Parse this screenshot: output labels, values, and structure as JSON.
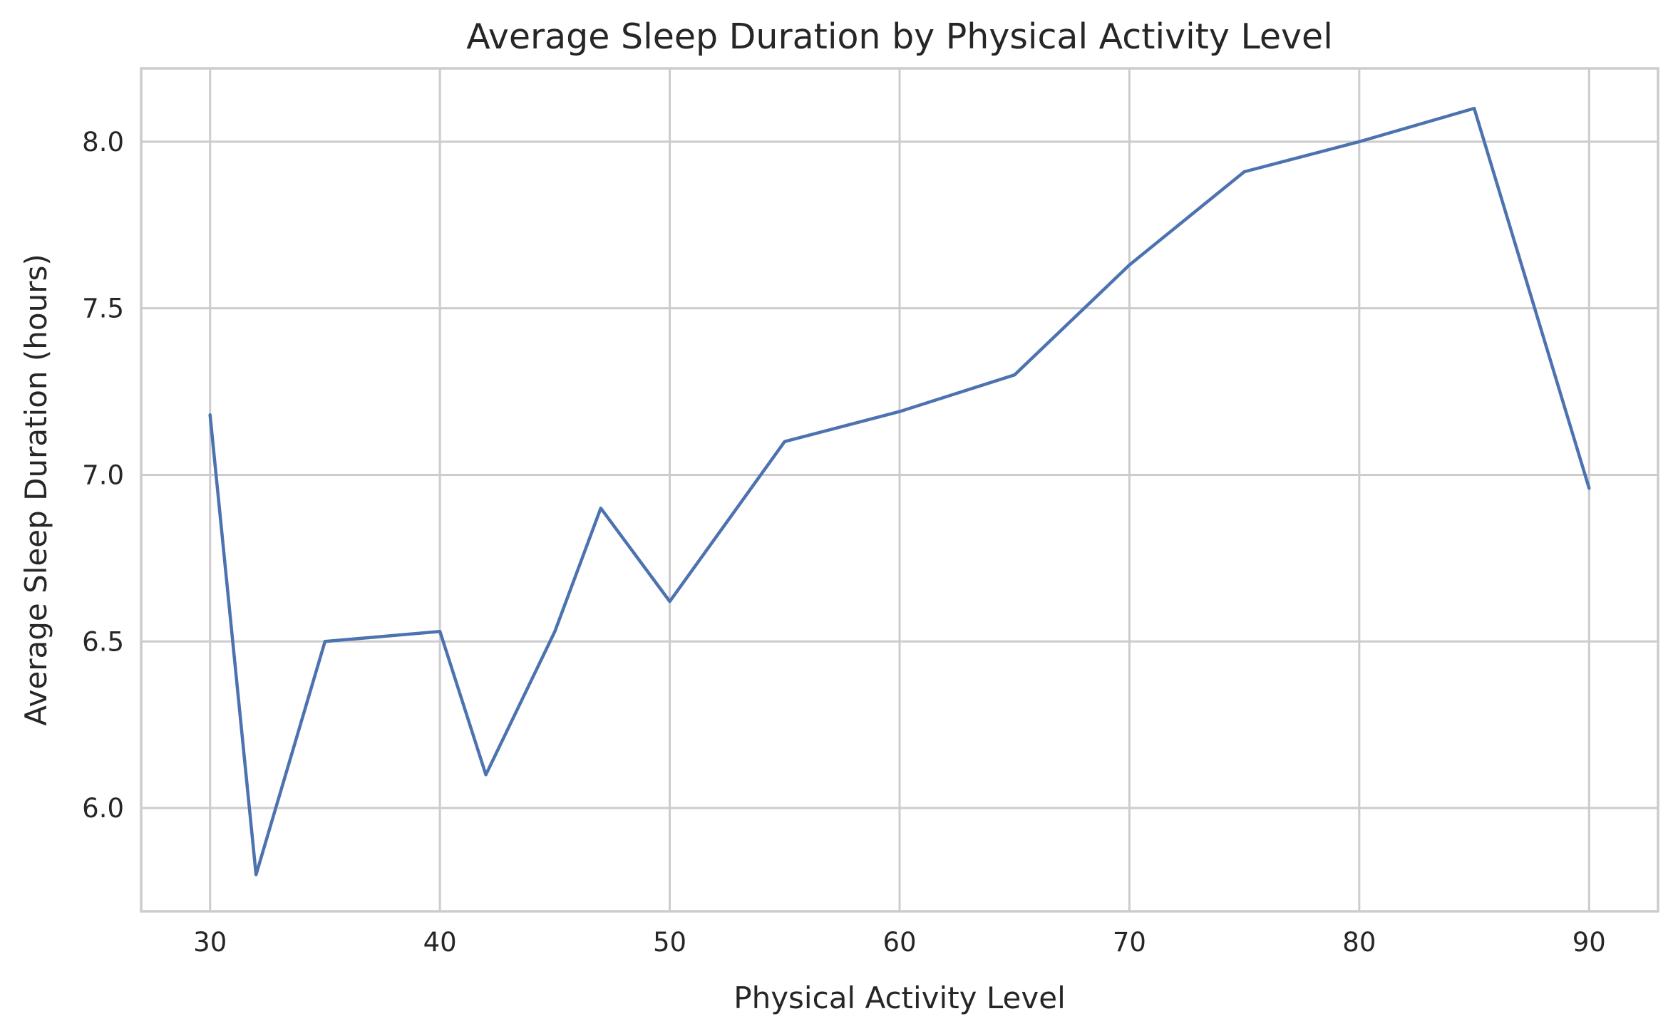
{
  "chart_data": {
    "type": "line",
    "title": "Average Sleep Duration by Physical Activity Level",
    "xlabel": "Physical Activity Level",
    "ylabel": "Average Sleep Duration (hours)",
    "xlim": [
      27,
      93
    ],
    "ylim": [
      5.69,
      8.22
    ],
    "xticks": [
      30,
      40,
      50,
      60,
      70,
      80,
      90
    ],
    "yticks": [
      6.0,
      6.5,
      7.0,
      7.5,
      8.0
    ],
    "xtick_labels": [
      "30",
      "40",
      "50",
      "60",
      "70",
      "80",
      "90"
    ],
    "ytick_labels": [
      "6.0",
      "6.5",
      "7.0",
      "7.5",
      "8.0"
    ],
    "grid": true,
    "series": [
      {
        "color": "#4c72b0",
        "x": [
          30,
          32,
          35,
          40,
          42,
          45,
          47,
          50,
          55,
          60,
          65,
          70,
          75,
          80,
          85,
          90
        ],
        "y": [
          7.18,
          5.8,
          6.5,
          6.53,
          6.1,
          6.53,
          6.9,
          6.62,
          7.1,
          7.19,
          7.3,
          7.63,
          7.91,
          8.0,
          8.1,
          6.96
        ]
      }
    ]
  }
}
